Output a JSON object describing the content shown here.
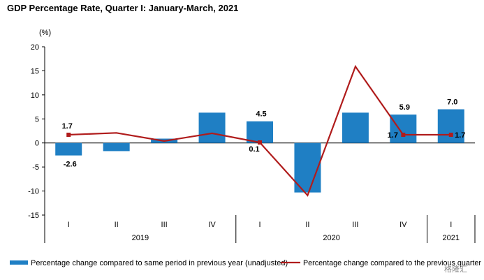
{
  "chart_data": {
    "type": "bar",
    "title": "GDP Percentage Rate, Quarter I: January-March, 2021",
    "ylabel": "(%)",
    "ylim": [
      -15,
      20
    ],
    "yticks": [
      "20",
      "15",
      "10",
      "5",
      "0",
      "-5",
      "-10",
      "-15"
    ],
    "categories": [
      "I",
      "II",
      "III",
      "IV",
      "I",
      "II",
      "III",
      "IV",
      "I"
    ],
    "years": [
      {
        "label": "2019",
        "start": 0,
        "end": 3
      },
      {
        "label": "2020",
        "start": 4,
        "end": 7
      },
      {
        "label": "2021",
        "start": 8,
        "end": 8
      }
    ],
    "series": [
      {
        "name": "Percentage change compared to same period in previous year (unadjusted)",
        "type": "bar",
        "color": "#1f7fc4",
        "values": [
          -2.6,
          -1.7,
          0.9,
          6.3,
          4.5,
          -10.3,
          6.3,
          5.9,
          7.0
        ]
      },
      {
        "name": "Percentage change compared to the previous quarter",
        "type": "line",
        "color": "#b01c1c",
        "values": [
          1.7,
          2.1,
          0.4,
          2.0,
          0.1,
          -10.9,
          15.9,
          1.7,
          1.7
        ]
      }
    ],
    "data_labels": [
      {
        "text": "-2.6",
        "index": 0,
        "value": -2.6
      },
      {
        "text": "1.7",
        "index": 0,
        "value": 1.7
      },
      {
        "text": "4.5",
        "index": 4,
        "value": 4.5
      },
      {
        "text": "0.1",
        "index": 4,
        "value": 0.1
      },
      {
        "text": "5.9",
        "index": 7,
        "value": 5.9
      },
      {
        "text": "1.7",
        "index": 7,
        "value": 1.7
      },
      {
        "text": "7.0",
        "index": 8,
        "value": 7.0
      },
      {
        "text": "1.7",
        "index": 8,
        "value": 1.7
      }
    ],
    "grid": false,
    "legend": "bottom"
  },
  "watermark": "格隆汇"
}
